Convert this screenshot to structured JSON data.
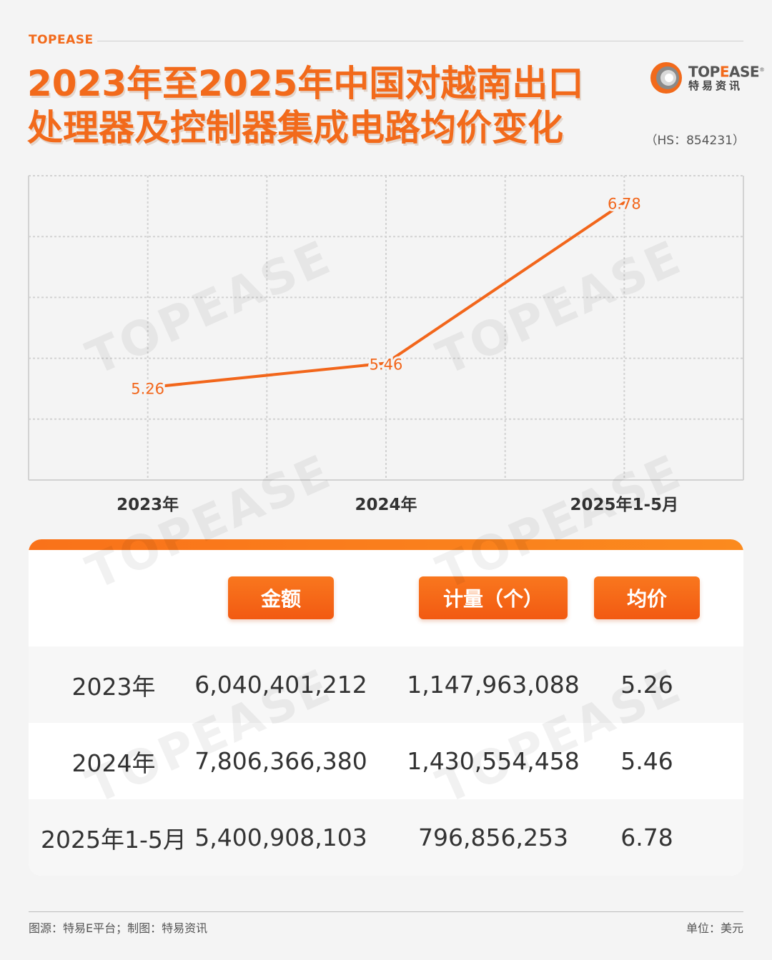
{
  "brand_label": "TOPEASE",
  "title_lines": [
    "2023年至2025年中国对越南出口",
    "处理器及控制器集成电路均价变化"
  ],
  "logo": {
    "en_prefix": "TOP",
    "en_o": "E",
    "en_suffix": "ASE",
    "registered": "®",
    "cn": "特易资讯"
  },
  "hs_code": "（HS：854231）",
  "watermark_text": "TOPEASE",
  "colors": {
    "accent": "#f26a1b",
    "line": "#f2661b",
    "grid": "#d2d2d2"
  },
  "chart_data": {
    "type": "line",
    "categories": [
      "2023年",
      "2024年",
      "2025年1-5月"
    ],
    "values": [
      5.26,
      5.46,
      6.78
    ],
    "data_labels": [
      "5.26",
      "5.46",
      "6.78"
    ],
    "ylim": [
      4.5,
      7.0
    ],
    "grid": true
  },
  "table": {
    "headers": [
      "金额",
      "计量（个）",
      "均价"
    ],
    "rows": [
      {
        "period": "2023年",
        "amount": "6,040,401,212",
        "quantity": "1,147,963,088",
        "avg_price": "5.26"
      },
      {
        "period": "2024年",
        "amount": "7,806,366,380",
        "quantity": "1,430,554,458",
        "avg_price": "5.46"
      },
      {
        "period": "2025年1-5月",
        "amount": "5,400,908,103",
        "quantity": "796,856,253",
        "avg_price": "6.78"
      }
    ]
  },
  "footer": {
    "source": "图源：特易E平台；制图：特易资讯",
    "unit": "单位：美元"
  }
}
